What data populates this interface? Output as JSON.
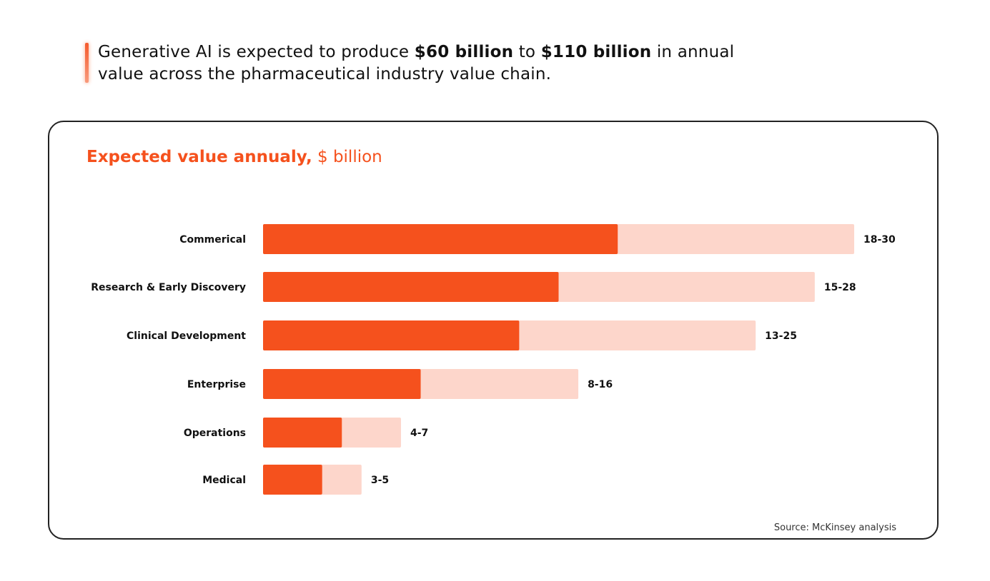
{
  "headline": {
    "pre": "Generative AI is expected to produce ",
    "low": "$60 billion",
    "mid": " to ",
    "high": "$110 billion",
    "post": " in annual value across the pharmaceutical industry value chain."
  },
  "colors": {
    "accent": "#f5511d",
    "range": "#fdd6cb",
    "text": "#111111"
  },
  "chart_data": {
    "type": "bar",
    "orientation": "horizontal",
    "title": "Expected value annualy,",
    "title_unit": "$ billion",
    "categories": [
      "Commerical",
      "Research & Early Discovery",
      "Clinical Development",
      "Enterprise",
      "Operations",
      "Medical"
    ],
    "series": [
      {
        "name": "low",
        "values": [
          18,
          15,
          13,
          8,
          4,
          3
        ]
      },
      {
        "name": "high",
        "values": [
          30,
          28,
          25,
          16,
          7,
          5
        ]
      }
    ],
    "value_labels": [
      "18-30",
      "15-28",
      "13-25",
      "8-16",
      "4-7",
      "3-5"
    ],
    "xlim": [
      0,
      30
    ],
    "grid": false,
    "source": "Source: McKinsey analysis"
  }
}
